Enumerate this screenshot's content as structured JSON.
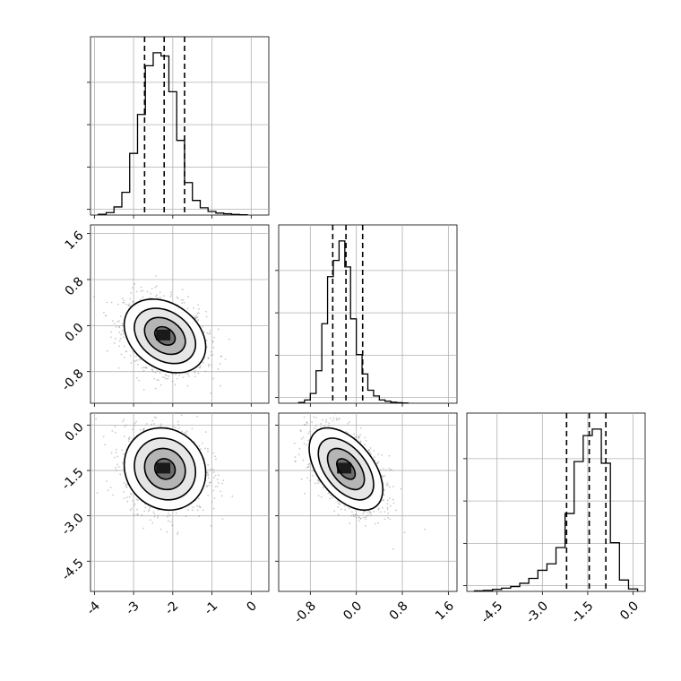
{
  "chart_data": {
    "type": "corner",
    "grid": true,
    "parameters": [
      {
        "axis_ticks": [
          "-4",
          "-3",
          "-2",
          "-1",
          "0"
        ],
        "range": [
          -4.1,
          0.45
        ],
        "histogram": {
          "bin_edges": [
            -3.9,
            -3.7,
            -3.5,
            -3.3,
            -3.1,
            -2.9,
            -2.7,
            -2.5,
            -2.3,
            -2.1,
            -1.9,
            -1.7,
            -1.5,
            -1.3,
            -1.1,
            -0.9,
            -0.7,
            -0.5,
            -0.3,
            -0.1
          ],
          "density": [
            0.005,
            0.015,
            0.05,
            0.14,
            0.38,
            0.62,
            0.92,
            1.0,
            0.98,
            0.76,
            0.46,
            0.2,
            0.09,
            0.045,
            0.022,
            0.012,
            0.008,
            0.004,
            0.002
          ]
        },
        "quantiles": [
          -2.72,
          -2.22,
          -1.7
        ]
      },
      {
        "axis_ticks": [
          "-0.8",
          "0.0",
          "0.8",
          "1.6"
        ],
        "range": [
          -1.35,
          1.75
        ],
        "histogram": {
          "bin_edges": [
            -1.0,
            -0.9,
            -0.8,
            -0.7,
            -0.6,
            -0.5,
            -0.4,
            -0.3,
            -0.2,
            -0.1,
            0.0,
            0.1,
            0.2,
            0.3,
            0.4,
            0.5,
            0.6,
            0.7,
            0.8,
            0.9
          ],
          "density": [
            0.005,
            0.02,
            0.06,
            0.2,
            0.49,
            0.78,
            0.88,
            1.0,
            0.84,
            0.52,
            0.3,
            0.18,
            0.08,
            0.045,
            0.02,
            0.012,
            0.006,
            0.003,
            0.001
          ]
        },
        "quantiles": [
          -0.41,
          -0.18,
          0.11
        ]
      },
      {
        "axis_ticks": [
          "-4.5",
          "-3.0",
          "-1.5",
          "0.0"
        ],
        "range": [
          -5.5,
          0.4
        ],
        "histogram": {
          "bin_edges": [
            -5.25,
            -4.95,
            -4.65,
            -4.35,
            -4.05,
            -3.75,
            -3.45,
            -3.15,
            -2.85,
            -2.55,
            -2.25,
            -1.95,
            -1.65,
            -1.35,
            -1.05,
            -0.75,
            -0.45,
            -0.15,
            0.15
          ],
          "density": [
            0.003,
            0.006,
            0.012,
            0.02,
            0.03,
            0.05,
            0.08,
            0.13,
            0.17,
            0.27,
            0.48,
            0.8,
            0.96,
            1.0,
            0.79,
            0.3,
            0.07,
            0.015
          ]
        },
        "quantiles": [
          -2.2,
          -1.45,
          -0.9
        ]
      }
    ],
    "tick_values": [
      [
        -4,
        -3,
        -2,
        -1,
        0
      ],
      [
        -0.8,
        0.0,
        0.8,
        1.6
      ],
      [
        -4.5,
        -3.0,
        -1.5,
        0.0
      ]
    ],
    "joint": [
      {
        "x": 0,
        "y": 1,
        "mean": [
          -2.2,
          -0.18
        ],
        "sd": [
          0.52,
          0.32
        ],
        "corr": -0.3
      },
      {
        "x": 0,
        "y": 2,
        "mean": [
          -2.2,
          -1.45
        ],
        "sd": [
          0.52,
          0.68
        ],
        "corr": -0.1
      },
      {
        "x": 1,
        "y": 2,
        "mean": [
          -0.18,
          -1.45
        ],
        "sd": [
          0.32,
          0.68
        ],
        "corr": -0.5
      }
    ],
    "contour_levels_sigma": [
      0.5,
      1.0,
      1.5,
      2.0
    ]
  }
}
